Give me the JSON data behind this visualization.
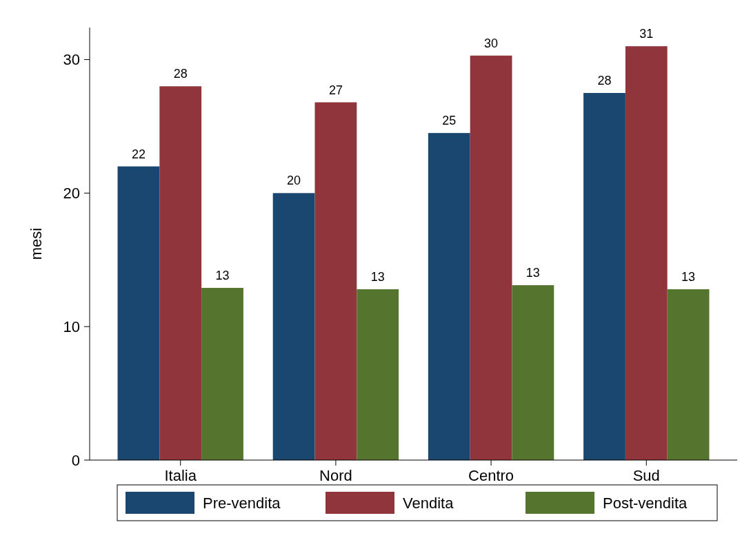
{
  "chart_data": {
    "type": "bar",
    "ylabel": "mesi",
    "categories": [
      "Italia",
      "Nord",
      "Centro",
      "Sud"
    ],
    "series": [
      {
        "name": "Pre-vendita",
        "color": "#1a476f",
        "values": [
          22.0,
          20.0,
          24.5,
          27.5
        ],
        "value_labels": [
          "22",
          "20",
          "25",
          "28"
        ]
      },
      {
        "name": "Vendita",
        "color": "#90353b",
        "values": [
          28.0,
          26.8,
          30.3,
          31.0
        ],
        "value_labels": [
          "28",
          "27",
          "30",
          "31"
        ]
      },
      {
        "name": "Post-vendita",
        "color": "#55752f",
        "values": [
          12.9,
          12.8,
          13.1,
          12.8
        ],
        "value_labels": [
          "13",
          "13",
          "13",
          "13"
        ]
      }
    ],
    "ylim": [
      0,
      32.4
    ],
    "yticks": [
      0,
      10,
      20,
      30
    ],
    "grid": false,
    "legend": "bottom"
  }
}
